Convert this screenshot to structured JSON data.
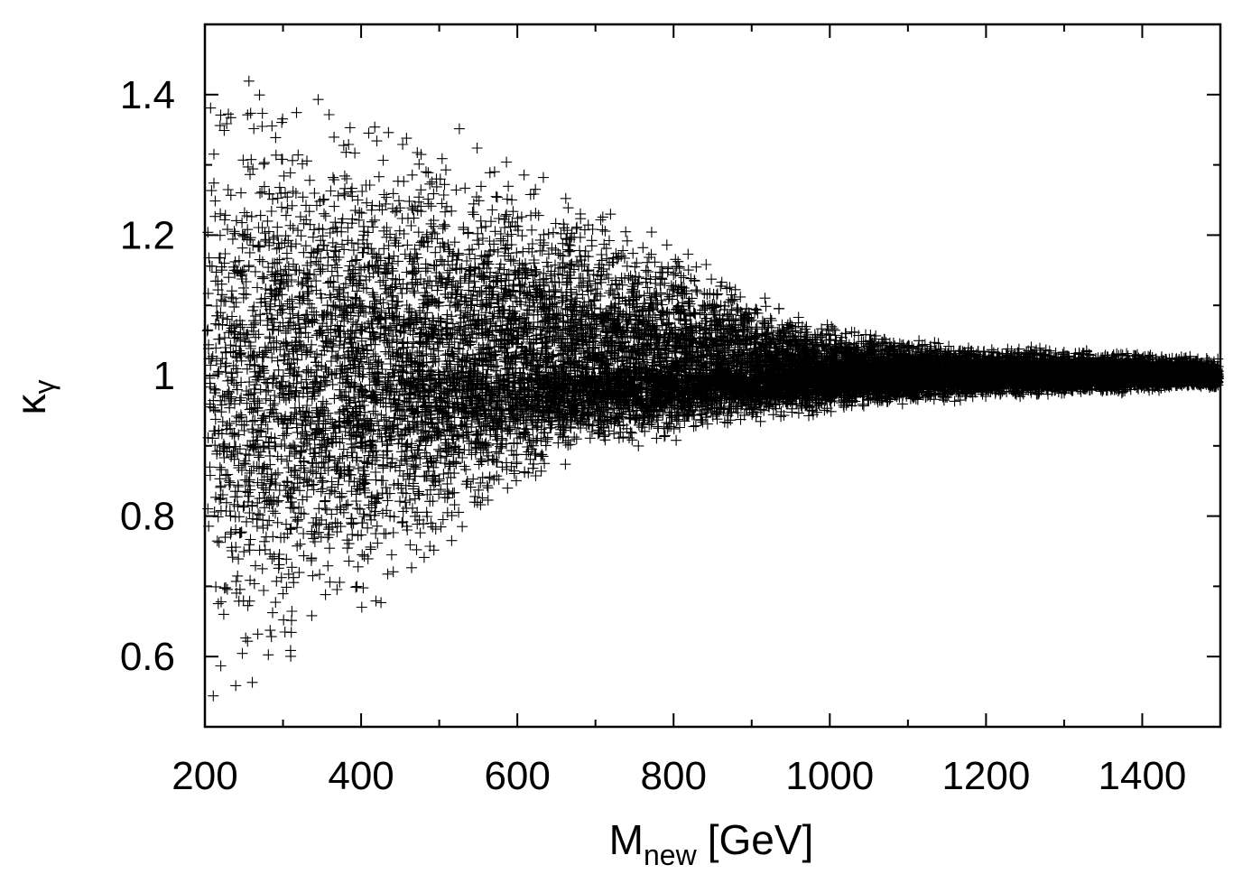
{
  "chart_data": {
    "type": "scatter",
    "title": "",
    "xlabel": "M",
    "xlabel_sub": "new",
    "xlabel_unit": "[GeV]",
    "ylabel": "κ",
    "ylabel_sub": "γ",
    "xlim": [
      200,
      1500
    ],
    "ylim": [
      0.5,
      1.5
    ],
    "x_ticks": [
      200,
      400,
      600,
      800,
      1000,
      1200,
      1400
    ],
    "y_ticks": [
      0.6,
      0.8,
      1,
      1.2,
      1.4
    ],
    "x_tick_labels": [
      "200",
      "400",
      "600",
      "800",
      "1000",
      "1200",
      "1400"
    ],
    "y_tick_labels": [
      "0.6",
      "0.8",
      "1",
      "1.2",
      "1.4"
    ],
    "x_minor_step": 100,
    "y_minor_step": 0.1,
    "grid": false,
    "legend": "none",
    "marker": "+",
    "marker_color": "#000000",
    "series": [
      {
        "description": "dense scatter of scan points; spread in κγ around 1 narrows with increasing mass",
        "x_range": [
          200,
          1500
        ],
        "center": 1.0,
        "envelope": [
          {
            "x": 200,
            "min": 0.5,
            "max": 1.5
          },
          {
            "x": 300,
            "min": 0.52,
            "max": 1.47
          },
          {
            "x": 400,
            "min": 0.6,
            "max": 1.43
          },
          {
            "x": 500,
            "min": 0.73,
            "max": 1.39
          },
          {
            "x": 600,
            "min": 0.82,
            "max": 1.34
          },
          {
            "x": 700,
            "min": 0.88,
            "max": 1.27
          },
          {
            "x": 800,
            "min": 0.9,
            "max": 1.21
          },
          {
            "x": 900,
            "min": 0.93,
            "max": 1.13
          },
          {
            "x": 1000,
            "min": 0.94,
            "max": 1.08
          },
          {
            "x": 1100,
            "min": 0.955,
            "max": 1.06
          },
          {
            "x": 1200,
            "min": 0.965,
            "max": 1.045
          },
          {
            "x": 1300,
            "min": 0.97,
            "max": 1.04
          },
          {
            "x": 1400,
            "min": 0.975,
            "max": 1.035
          },
          {
            "x": 1500,
            "min": 0.98,
            "max": 1.03
          }
        ]
      }
    ]
  }
}
